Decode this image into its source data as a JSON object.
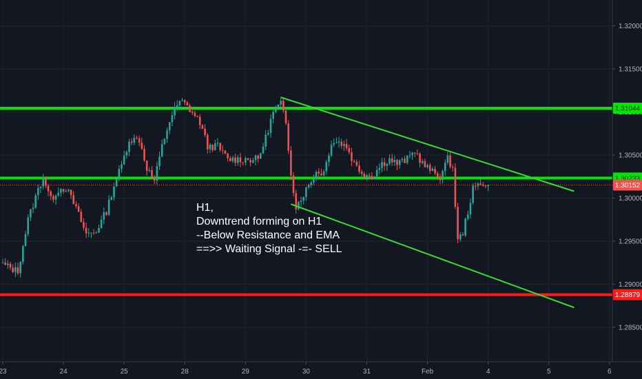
{
  "chart_data": {
    "type": "candlestick",
    "title": "",
    "xlabel": "",
    "ylabel": "",
    "ylim": [
      1.281,
      1.323
    ],
    "y_ticks": [
      "1.32000",
      "1.31500",
      "1.31000",
      "1.30500",
      "1.30000",
      "1.29500",
      "1.29000",
      "1.28500"
    ],
    "y_tick_values": [
      1.32,
      1.315,
      1.31,
      1.305,
      1.3,
      1.295,
      1.29,
      1.285
    ],
    "x_ticks": [
      "23",
      "24",
      "25",
      "28",
      "29",
      "30",
      "31",
      "Feb",
      "4",
      "5",
      "6"
    ],
    "x_tick_index": [
      0,
      24,
      48,
      72,
      96,
      120,
      144,
      168,
      192,
      216,
      240
    ],
    "horizontal_lines": [
      {
        "label": "1.31044",
        "value": 1.31044,
        "color": "#00e600"
      },
      {
        "label": "1.30233",
        "value": 1.30233,
        "color": "#00e600"
      },
      {
        "label": "1.28879",
        "value": 1.28879,
        "color": "#ff1a1a"
      }
    ],
    "current_price": {
      "label": "1.30152",
      "value": 1.30152,
      "color": "#ef5350"
    },
    "trend_lines": [
      {
        "from": [
          110,
          1.3117
        ],
        "to": [
          226,
          1.3008
        ],
        "color": "#33dd33"
      },
      {
        "from": [
          114,
          1.2993
        ],
        "to": [
          226,
          1.2873
        ],
        "color": "#33dd33"
      }
    ],
    "annotation": [
      "H1,",
      "Downtrend forming on H1",
      "--Below Resistance and EMA",
      "==>> Waiting Signal -=- SELL"
    ],
    "anchors": [
      [
        0,
        1.2923
      ],
      [
        6,
        1.2915
      ],
      [
        10,
        1.2975
      ],
      [
        14,
        1.301
      ],
      [
        16,
        1.3025
      ],
      [
        19,
        1.2998
      ],
      [
        22,
        1.301
      ],
      [
        25,
        1.3012
      ],
      [
        29,
        1.2988
      ],
      [
        33,
        1.2958
      ],
      [
        37,
        1.2962
      ],
      [
        41,
        1.2985
      ],
      [
        44,
        1.3015
      ],
      [
        47,
        1.3038
      ],
      [
        50,
        1.3068
      ],
      [
        54,
        1.3068
      ],
      [
        57,
        1.3035
      ],
      [
        60,
        1.302
      ],
      [
        63,
        1.306
      ],
      [
        66,
        1.309
      ],
      [
        69,
        1.3108
      ],
      [
        71,
        1.3112
      ],
      [
        74,
        1.3103
      ],
      [
        78,
        1.3088
      ],
      [
        81,
        1.306
      ],
      [
        85,
        1.306
      ],
      [
        89,
        1.3045
      ],
      [
        93,
        1.3045
      ],
      [
        97,
        1.3045
      ],
      [
        101,
        1.3045
      ],
      [
        104,
        1.307
      ],
      [
        107,
        1.31
      ],
      [
        110,
        1.311
      ],
      [
        112,
        1.3085
      ],
      [
        114,
        1.303
      ],
      [
        116,
        1.299
      ],
      [
        118,
        1.3
      ],
      [
        121,
        1.3015
      ],
      [
        124,
        1.303
      ],
      [
        127,
        1.303
      ],
      [
        130,
        1.3065
      ],
      [
        133,
        1.3065
      ],
      [
        136,
        1.306
      ],
      [
        139,
        1.304
      ],
      [
        142,
        1.303
      ],
      [
        146,
        1.3025
      ],
      [
        150,
        1.304
      ],
      [
        153,
        1.3045
      ],
      [
        156,
        1.304
      ],
      [
        160,
        1.3045
      ],
      [
        163,
        1.3055
      ],
      [
        166,
        1.304
      ],
      [
        170,
        1.303
      ],
      [
        173,
        1.3025
      ],
      [
        176,
        1.3045
      ],
      [
        178,
        1.3035
      ],
      [
        180,
        1.295
      ],
      [
        182,
        1.296
      ],
      [
        184,
        1.2985
      ],
      [
        186,
        1.301
      ],
      [
        188,
        1.3015
      ],
      [
        190,
        1.3018
      ],
      [
        192,
        1.3015
      ]
    ]
  }
}
